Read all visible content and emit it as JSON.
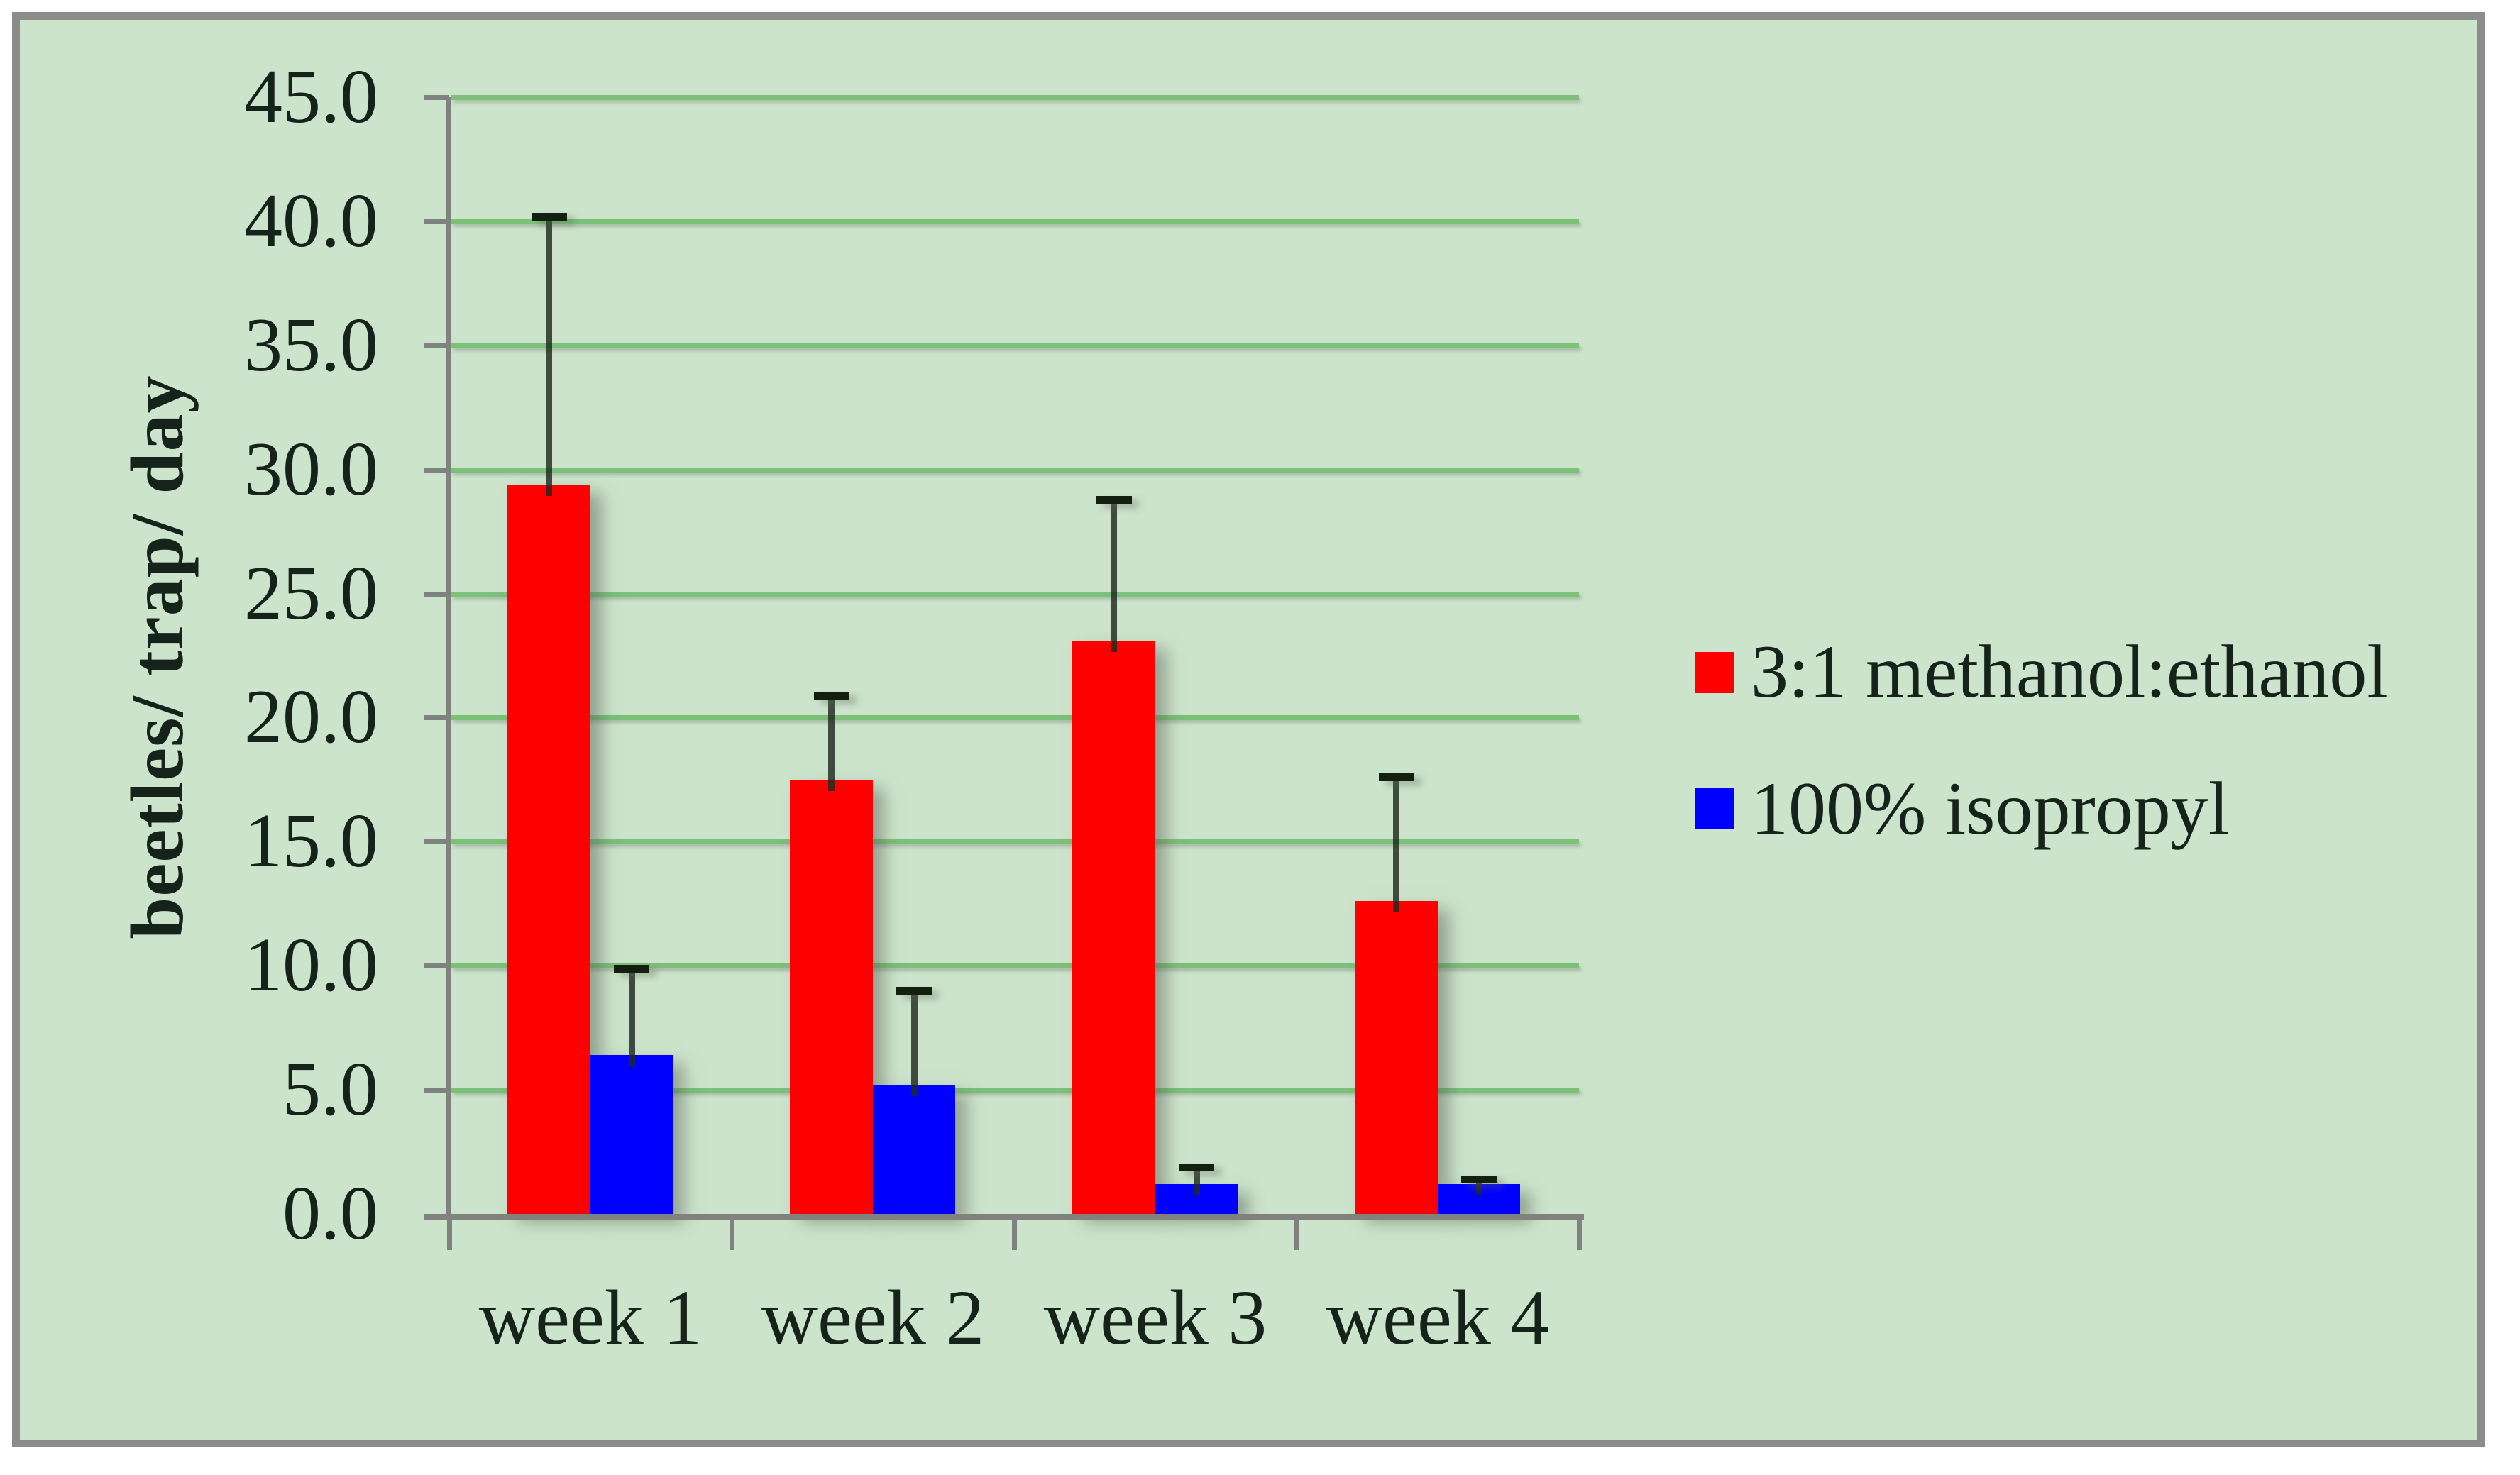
{
  "figure": {
    "background": "#cde4cc",
    "border_color": "#8a8d8a",
    "grid_color": "#7cc07a",
    "axis_color": "#7f827f",
    "text_color": "#16231a"
  },
  "chart_data": {
    "type": "bar",
    "title": "",
    "xlabel": "",
    "ylabel": "beetles/ trap/ day",
    "categories": [
      "week 1",
      "week 2",
      "week 3",
      "week 4"
    ],
    "series": [
      {
        "name": "3:1 methanol:ethanol",
        "color": "#ff0000",
        "values": [
          29.4,
          17.5,
          23.1,
          12.6
        ],
        "error_plus": [
          10.8,
          3.4,
          5.7,
          5.0
        ]
      },
      {
        "name": "100% isopropyl",
        "color": "#0000ff",
        "values": [
          6.4,
          5.2,
          1.2,
          1.2
        ],
        "error_plus": [
          3.5,
          3.8,
          0.7,
          0.2
        ]
      }
    ],
    "ylim": [
      0,
      45
    ],
    "ytick_step": 5,
    "ytick_labels": [
      "0.0",
      "5.0",
      "10.0",
      "15.0",
      "20.0",
      "25.0",
      "30.0",
      "35.0",
      "40.0",
      "45.0"
    ],
    "grid": true,
    "error_bars": "upper only",
    "legend_position": "right"
  }
}
